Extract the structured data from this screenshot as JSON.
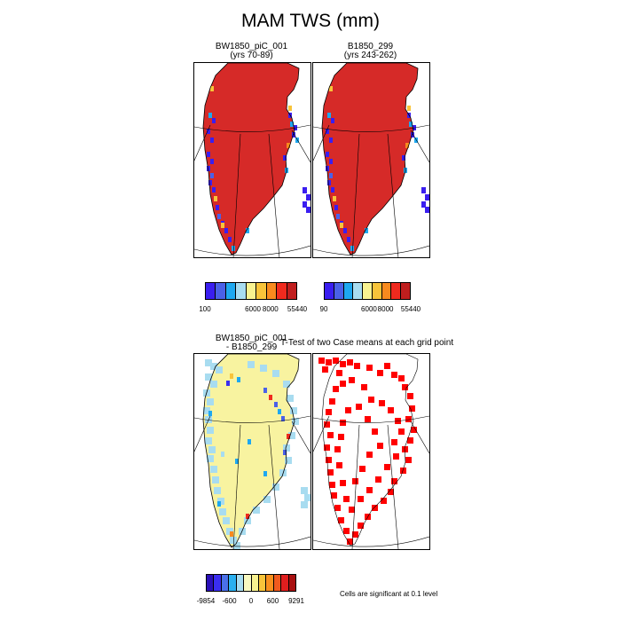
{
  "title": "MAM TWS (mm)",
  "panels": {
    "top_left": {
      "line1": "BW1850_piC_001",
      "line2": "(yrs 70-89)"
    },
    "top_right": {
      "line1": "B1850_299",
      "line2": "(yrs 243-262)"
    },
    "bottom_left": {
      "line1": "BW1850_piC_001",
      "line2": "- B1850_299"
    },
    "bottom_right": {
      "line1": "T-Test of two Case means at each grid point"
    }
  },
  "colorbars": {
    "cb1": {
      "colors": [
        "#3a1ef0",
        "#4a61e8",
        "#1ea8f0",
        "#a8dcf0",
        "#f8f290",
        "#f8c43a",
        "#f88a1e",
        "#f02a1e",
        "#c01e1e"
      ],
      "ticks": [
        "100",
        "6000",
        "8000",
        "55440"
      ]
    },
    "cb2": {
      "colors": [
        "#3a1ef0",
        "#4a61e8",
        "#1ea8f0",
        "#a8dcf0",
        "#f8f290",
        "#f8c43a",
        "#f88a1e",
        "#f02a1e",
        "#c01e1e"
      ],
      "ticks": [
        "90",
        "6000",
        "8000",
        "55440"
      ]
    },
    "cb3": {
      "colors": [
        "#2a10b8",
        "#3a2ef0",
        "#4a70e8",
        "#2ab0f0",
        "#a8dcf0",
        "#f8f8c0",
        "#f8f290",
        "#f8c43a",
        "#f8901e",
        "#f05a1e",
        "#e01e1e",
        "#a81010"
      ],
      "ticks": [
        "-9854",
        "-600",
        "0",
        "600",
        "9291"
      ]
    }
  },
  "note": "Cells are significant at 0.1 level",
  "colors": {
    "land": "#d62a28",
    "diff_land": "#f8f3a0",
    "sig": "#ff0000"
  }
}
